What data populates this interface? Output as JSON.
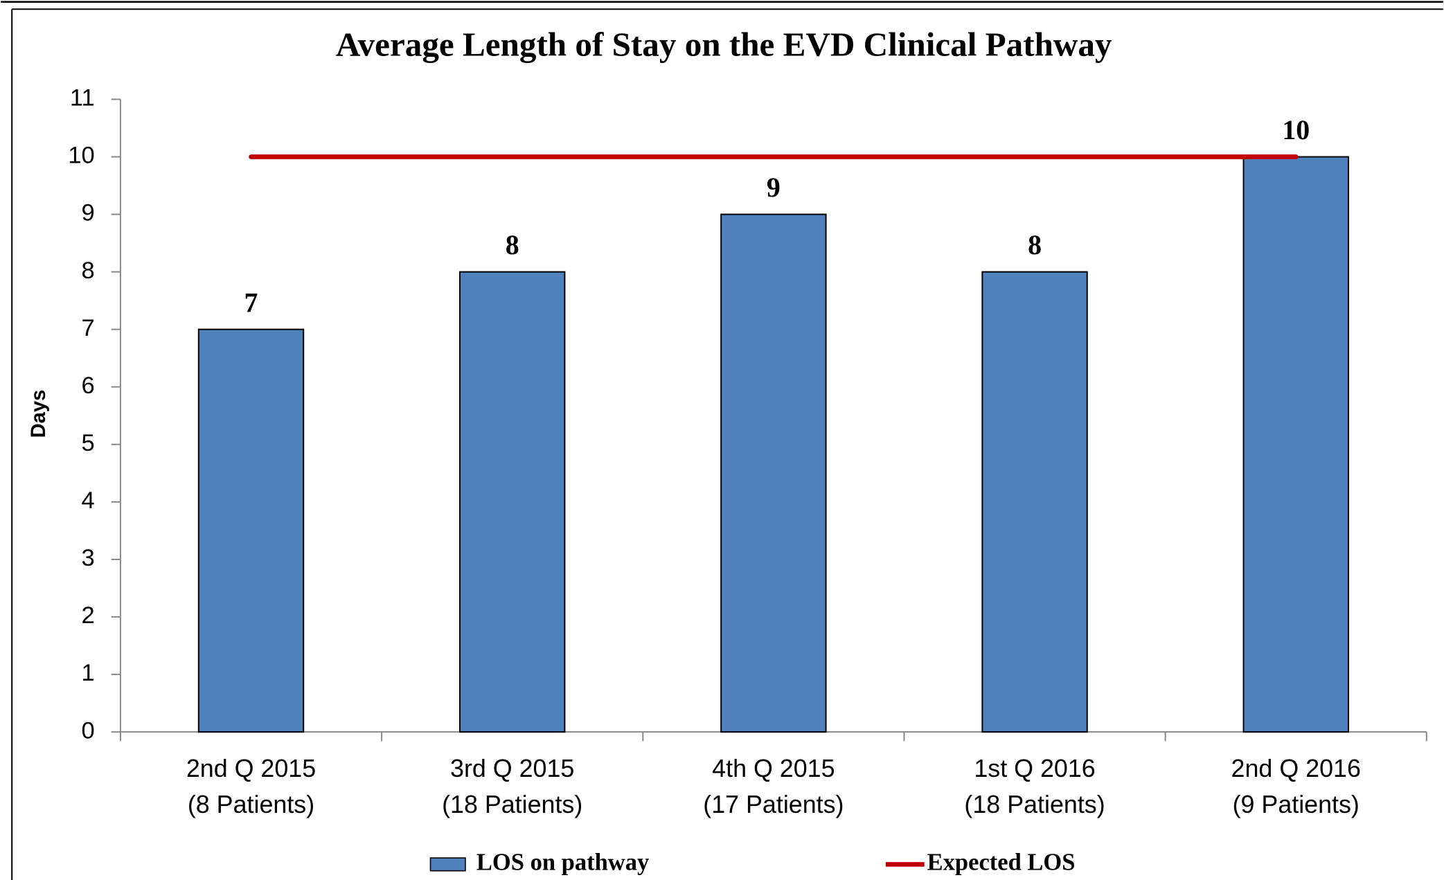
{
  "chart_data": {
    "type": "bar",
    "title": "Average Length of Stay on the EVD Clinical Pathway",
    "ylabel": "Days",
    "categories": [
      "2nd Q 2015\n(8 Patients)",
      "3rd Q 2015\n(18 Patients)",
      "4th Q 2015\n(17 Patients)",
      "1st Q 2016\n(18 Patients)",
      "2nd Q 2016\n(9 Patients)"
    ],
    "series": [
      {
        "name": "LOS on pathway",
        "type": "bar",
        "color": "#4f81bd",
        "values": [
          7,
          8,
          9,
          8,
          10
        ]
      },
      {
        "name": "Expected LOS",
        "type": "line",
        "color": "#c00000",
        "values": [
          10,
          10,
          10,
          10,
          10
        ]
      }
    ],
    "ylim": [
      0,
      11
    ],
    "yticks": [
      0,
      1,
      2,
      3,
      4,
      5,
      6,
      7,
      8,
      9,
      10,
      11
    ],
    "grid": false,
    "legend": "bottom"
  }
}
